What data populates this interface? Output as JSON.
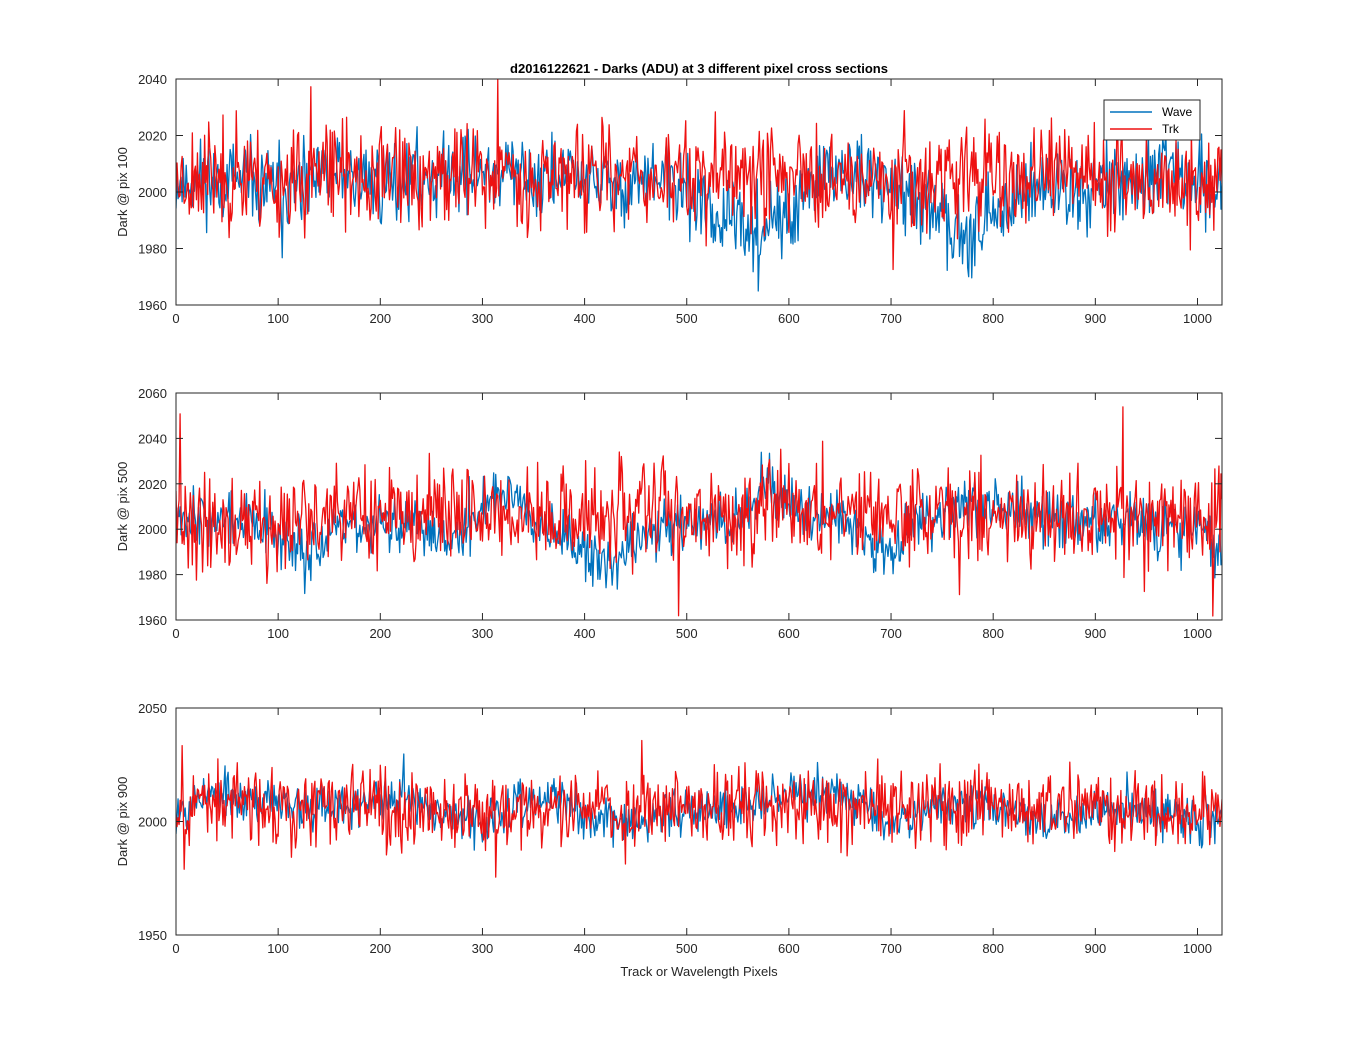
{
  "figure": {
    "title": "d2016122621 - Darks (ADU) at 3 different pixel cross sections",
    "xlabel": "Track or Wavelength Pixels"
  },
  "colors": {
    "Wave": "#0072BD",
    "Trk": "#EE1111",
    "axes": "#262626"
  },
  "chart_data": [
    {
      "type": "line",
      "title": "d2016122621 - Darks (ADU) at 3 different pixel cross sections",
      "ylabel": "Dark @ pix 100",
      "xlabel": "",
      "xlim": [
        0,
        1024
      ],
      "ylim": [
        1960,
        2040
      ],
      "xticks": [
        0,
        100,
        200,
        300,
        400,
        500,
        600,
        700,
        800,
        900,
        1000
      ],
      "yticks": [
        1960,
        1980,
        2000,
        2020,
        2040
      ],
      "legend": {
        "entries": [
          "Wave",
          "Trk"
        ],
        "position": "top-right"
      },
      "series": [
        {
          "name": "Wave",
          "color": "#0072BD",
          "x": [
            0,
            25,
            50,
            75,
            100,
            125,
            150,
            175,
            200,
            225,
            250,
            275,
            300,
            325,
            350,
            375,
            400,
            425,
            450,
            475,
            500,
            525,
            550,
            575,
            600,
            625,
            650,
            675,
            700,
            725,
            750,
            775,
            800,
            825,
            850,
            875,
            900,
            925,
            950,
            975,
            1000,
            1024
          ],
          "values": [
            2003,
            2005,
            2004,
            2002,
            2001,
            2000,
            2007,
            2005,
            2004,
            2005,
            2006,
            2008,
            2007,
            2006,
            2005,
            2006,
            2005,
            2002,
            2004,
            2004,
            2000,
            1993,
            1988,
            1987,
            1990,
            2003,
            2006,
            2005,
            2001,
            1995,
            1990,
            1988,
            1989,
            2001,
            2002,
            2000,
            2003,
            2004,
            2005,
            2006,
            2004,
            2000
          ],
          "noise": 7,
          "seed": 11
        },
        {
          "name": "Trk",
          "color": "#EE1111",
          "x": [
            0,
            25,
            50,
            75,
            100,
            125,
            150,
            175,
            200,
            225,
            250,
            275,
            300,
            325,
            350,
            375,
            400,
            425,
            450,
            475,
            500,
            525,
            550,
            575,
            600,
            625,
            650,
            675,
            700,
            725,
            750,
            775,
            800,
            825,
            850,
            875,
            900,
            925,
            950,
            975,
            1000,
            1024
          ],
          "values": [
            2005,
            2006,
            2005,
            2004,
            2004,
            2004,
            2006,
            2006,
            2005,
            2005,
            2006,
            2007,
            2006,
            2007,
            2006,
            2006,
            2006,
            2005,
            2006,
            2006,
            2005,
            2005,
            2006,
            2007,
            2006,
            2005,
            2006,
            2004,
            2005,
            2006,
            2006,
            2007,
            2005,
            2005,
            2006,
            2006,
            2005,
            2005,
            2006,
            2005,
            2003,
            2004
          ],
          "noise": 9,
          "seed": 23
        }
      ]
    },
    {
      "type": "line",
      "ylabel": "Dark @ pix 500",
      "xlabel": "",
      "xlim": [
        0,
        1024
      ],
      "ylim": [
        1960,
        2060
      ],
      "xticks": [
        0,
        100,
        200,
        300,
        400,
        500,
        600,
        700,
        800,
        900,
        1000
      ],
      "yticks": [
        1960,
        1980,
        2000,
        2020,
        2040,
        2060
      ],
      "series": [
        {
          "name": "Wave",
          "color": "#0072BD",
          "x": [
            0,
            25,
            50,
            75,
            100,
            125,
            150,
            175,
            200,
            225,
            250,
            275,
            300,
            325,
            350,
            375,
            400,
            425,
            450,
            475,
            500,
            525,
            550,
            575,
            600,
            625,
            650,
            675,
            700,
            725,
            750,
            775,
            800,
            825,
            850,
            875,
            900,
            925,
            950,
            975,
            1000,
            1024
          ],
          "values": [
            2008,
            2006,
            2004,
            2003,
            1993,
            1993,
            1996,
            2003,
            2002,
            2000,
            2000,
            1995,
            2012,
            2018,
            2008,
            2000,
            1988,
            1982,
            1995,
            2000,
            2005,
            2003,
            2003,
            2020,
            2012,
            2008,
            2005,
            1996,
            1990,
            2006,
            2005,
            2013,
            2010,
            2008,
            2006,
            2004,
            2003,
            2004,
            2003,
            2000,
            2004,
            1988
          ],
          "noise": 6,
          "seed": 37
        },
        {
          "name": "Trk",
          "color": "#EE1111",
          "x": [
            0,
            25,
            50,
            75,
            100,
            125,
            150,
            175,
            200,
            225,
            250,
            275,
            300,
            325,
            350,
            375,
            400,
            425,
            450,
            475,
            500,
            525,
            550,
            575,
            600,
            625,
            650,
            675,
            700,
            725,
            750,
            775,
            800,
            825,
            850,
            875,
            900,
            925,
            950,
            975,
            1000,
            1024
          ],
          "values": [
            2004,
            2003,
            2003,
            2003,
            2000,
            2003,
            2004,
            2006,
            2006,
            2007,
            2008,
            2005,
            2008,
            2008,
            2006,
            2005,
            2005,
            2003,
            2007,
            2008,
            2007,
            2006,
            2007,
            2009,
            2007,
            2006,
            2006,
            2006,
            2006,
            2007,
            2007,
            2008,
            2007,
            2007,
            2006,
            2006,
            2006,
            2006,
            2006,
            2005,
            2005,
            2004
          ],
          "noise": 10,
          "seed": 41
        }
      ]
    },
    {
      "type": "line",
      "ylabel": "Dark @ pix 900",
      "xlabel": "Track or Wavelength Pixels",
      "xlim": [
        0,
        1024
      ],
      "ylim": [
        1950,
        2050
      ],
      "xticks": [
        0,
        100,
        200,
        300,
        400,
        500,
        600,
        700,
        800,
        900,
        1000
      ],
      "yticks": [
        1950,
        2000,
        2050
      ],
      "series": [
        {
          "name": "Wave",
          "color": "#0072BD",
          "x": [
            0,
            25,
            50,
            75,
            100,
            125,
            150,
            175,
            200,
            225,
            250,
            275,
            300,
            325,
            350,
            375,
            400,
            425,
            450,
            475,
            500,
            525,
            550,
            575,
            600,
            625,
            650,
            675,
            700,
            725,
            750,
            775,
            800,
            825,
            850,
            875,
            900,
            925,
            950,
            975,
            1000,
            1024
          ],
          "values": [
            2005,
            2012,
            2012,
            2010,
            2008,
            2007,
            2008,
            2008,
            2009,
            2009,
            2007,
            2003,
            2000,
            2005,
            2008,
            2010,
            2002,
            2000,
            2000,
            2002,
            2006,
            2004,
            2006,
            2010,
            2014,
            2012,
            2012,
            2008,
            2000,
            2005,
            2008,
            2007,
            2008,
            2004,
            2000,
            2002,
            2004,
            2006,
            2004,
            2004,
            2002,
            2002
          ],
          "noise": 5,
          "seed": 53
        },
        {
          "name": "Trk",
          "color": "#EE1111",
          "x": [
            0,
            25,
            50,
            75,
            100,
            125,
            150,
            175,
            200,
            225,
            250,
            275,
            300,
            325,
            350,
            375,
            400,
            425,
            450,
            475,
            500,
            525,
            550,
            575,
            600,
            625,
            650,
            675,
            700,
            725,
            750,
            775,
            800,
            825,
            850,
            875,
            900,
            925,
            950,
            975,
            1000,
            1024
          ],
          "values": [
            2006,
            2008,
            2008,
            2007,
            2006,
            2006,
            2006,
            2006,
            2006,
            2006,
            2006,
            2005,
            2006,
            2006,
            2006,
            2006,
            2006,
            2005,
            2005,
            2006,
            2007,
            2007,
            2007,
            2008,
            2007,
            2006,
            2006,
            2006,
            2006,
            2006,
            2006,
            2006,
            2006,
            2006,
            2006,
            2006,
            2006,
            2006,
            2006,
            2005,
            2005,
            2005
          ],
          "noise": 8,
          "seed": 67
        }
      ]
    }
  ]
}
